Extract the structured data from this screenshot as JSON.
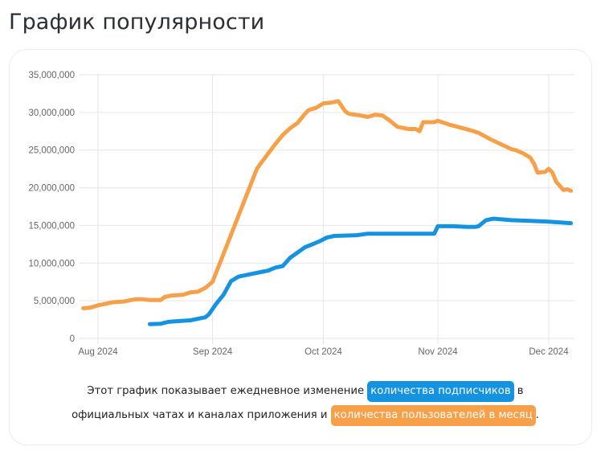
{
  "page": {
    "title": "График популярности"
  },
  "caption": {
    "part1": "Этот график показывает ежедневное изменение ",
    "badge_subscribers": "количества подписчиков",
    "part2": " в официальных чатах и каналах приложения и ",
    "badge_mau": "количества пользователей в месяц",
    "part3": "."
  },
  "colors": {
    "subscribers": "#1592e0",
    "mau": "#f7a04a",
    "grid": "#e6e6e6",
    "tick_text": "#666666"
  },
  "chart_data": {
    "type": "line",
    "title": "График популярности",
    "xlabel": "",
    "ylabel": "",
    "ylim": [
      0,
      35000000
    ],
    "yticks": [
      0,
      5000000,
      10000000,
      15000000,
      20000000,
      25000000,
      30000000,
      35000000
    ],
    "ytick_labels": [
      "0",
      "5,000,000",
      "10,000,000",
      "15,000,000",
      "20,000,000",
      "25,000,000",
      "30,000,000",
      "35,000,000"
    ],
    "xticks": [
      {
        "label": "Aug 2024",
        "day": 0
      },
      {
        "label": "Sep 2024",
        "day": 31
      },
      {
        "label": "Oct 2024",
        "day": 61
      },
      {
        "label": "Nov 2024",
        "day": 92
      },
      {
        "label": "Dec 2024",
        "day": 122
      }
    ],
    "x_unit": "days since 2024-08-01",
    "xlim": [
      -4,
      129
    ],
    "grid": true,
    "legend": "none (series identified by colored badges in caption)",
    "series": [
      {
        "name": "количества пользователей в месяц",
        "color": "#f7a04a",
        "points": [
          [
            -4,
            4000000
          ],
          [
            -2,
            4100000
          ],
          [
            0,
            4400000
          ],
          [
            2,
            4600000
          ],
          [
            4,
            4800000
          ],
          [
            7,
            4900000
          ],
          [
            10,
            5200000
          ],
          [
            12,
            5200000
          ],
          [
            14,
            5100000
          ],
          [
            17,
            5100000
          ],
          [
            18,
            5500000
          ],
          [
            20,
            5700000
          ],
          [
            23,
            5800000
          ],
          [
            25,
            6100000
          ],
          [
            27,
            6200000
          ],
          [
            29,
            6700000
          ],
          [
            31,
            7500000
          ],
          [
            33,
            10000000
          ],
          [
            35,
            12500000
          ],
          [
            37,
            15000000
          ],
          [
            39,
            17500000
          ],
          [
            41,
            20000000
          ],
          [
            43,
            22500000
          ],
          [
            44,
            23200000
          ],
          [
            46,
            24500000
          ],
          [
            48,
            25800000
          ],
          [
            50,
            27000000
          ],
          [
            52,
            27900000
          ],
          [
            54,
            28600000
          ],
          [
            56,
            29800000
          ],
          [
            57,
            30300000
          ],
          [
            59,
            30600000
          ],
          [
            61,
            31200000
          ],
          [
            63,
            31300000
          ],
          [
            65,
            31500000
          ],
          [
            67,
            30100000
          ],
          [
            68,
            29800000
          ],
          [
            71,
            29600000
          ],
          [
            73,
            29400000
          ],
          [
            75,
            29700000
          ],
          [
            77,
            29600000
          ],
          [
            79,
            28900000
          ],
          [
            81,
            28100000
          ],
          [
            84,
            27800000
          ],
          [
            86,
            27800000
          ],
          [
            87,
            27500000
          ],
          [
            88,
            28700000
          ],
          [
            91,
            28700000
          ],
          [
            92,
            28900000
          ],
          [
            95,
            28400000
          ],
          [
            98,
            28000000
          ],
          [
            101,
            27600000
          ],
          [
            103,
            27300000
          ],
          [
            106,
            26500000
          ],
          [
            109,
            25800000
          ],
          [
            112,
            25100000
          ],
          [
            113,
            25000000
          ],
          [
            115,
            24600000
          ],
          [
            117,
            24000000
          ],
          [
            118,
            23200000
          ],
          [
            119,
            22000000
          ],
          [
            121,
            22100000
          ],
          [
            122,
            22500000
          ],
          [
            123,
            22000000
          ],
          [
            124,
            20800000
          ],
          [
            126,
            19700000
          ],
          [
            127,
            19800000
          ],
          [
            128,
            19600000
          ]
        ]
      },
      {
        "name": "количества подписчиков",
        "color": "#1592e0",
        "points": [
          [
            14,
            1900000
          ],
          [
            17,
            1950000
          ],
          [
            19,
            2200000
          ],
          [
            22,
            2300000
          ],
          [
            25,
            2400000
          ],
          [
            27,
            2600000
          ],
          [
            29,
            2800000
          ],
          [
            30,
            3200000
          ],
          [
            32,
            4600000
          ],
          [
            34,
            5800000
          ],
          [
            36,
            7600000
          ],
          [
            38,
            8200000
          ],
          [
            41,
            8500000
          ],
          [
            44,
            8800000
          ],
          [
            46,
            9000000
          ],
          [
            48,
            9400000
          ],
          [
            50,
            9600000
          ],
          [
            52,
            10700000
          ],
          [
            54,
            11400000
          ],
          [
            56,
            12100000
          ],
          [
            58,
            12500000
          ],
          [
            60,
            12900000
          ],
          [
            62,
            13400000
          ],
          [
            64,
            13600000
          ],
          [
            70,
            13700000
          ],
          [
            73,
            13900000
          ],
          [
            78,
            13900000
          ],
          [
            84,
            13900000
          ],
          [
            89,
            13900000
          ],
          [
            91,
            13900000
          ],
          [
            92,
            14900000
          ],
          [
            96,
            14900000
          ],
          [
            100,
            14800000
          ],
          [
            102,
            14800000
          ],
          [
            103,
            14900000
          ],
          [
            105,
            15700000
          ],
          [
            107,
            15900000
          ],
          [
            112,
            15700000
          ],
          [
            117,
            15600000
          ],
          [
            122,
            15500000
          ],
          [
            128,
            15300000
          ]
        ]
      }
    ]
  }
}
